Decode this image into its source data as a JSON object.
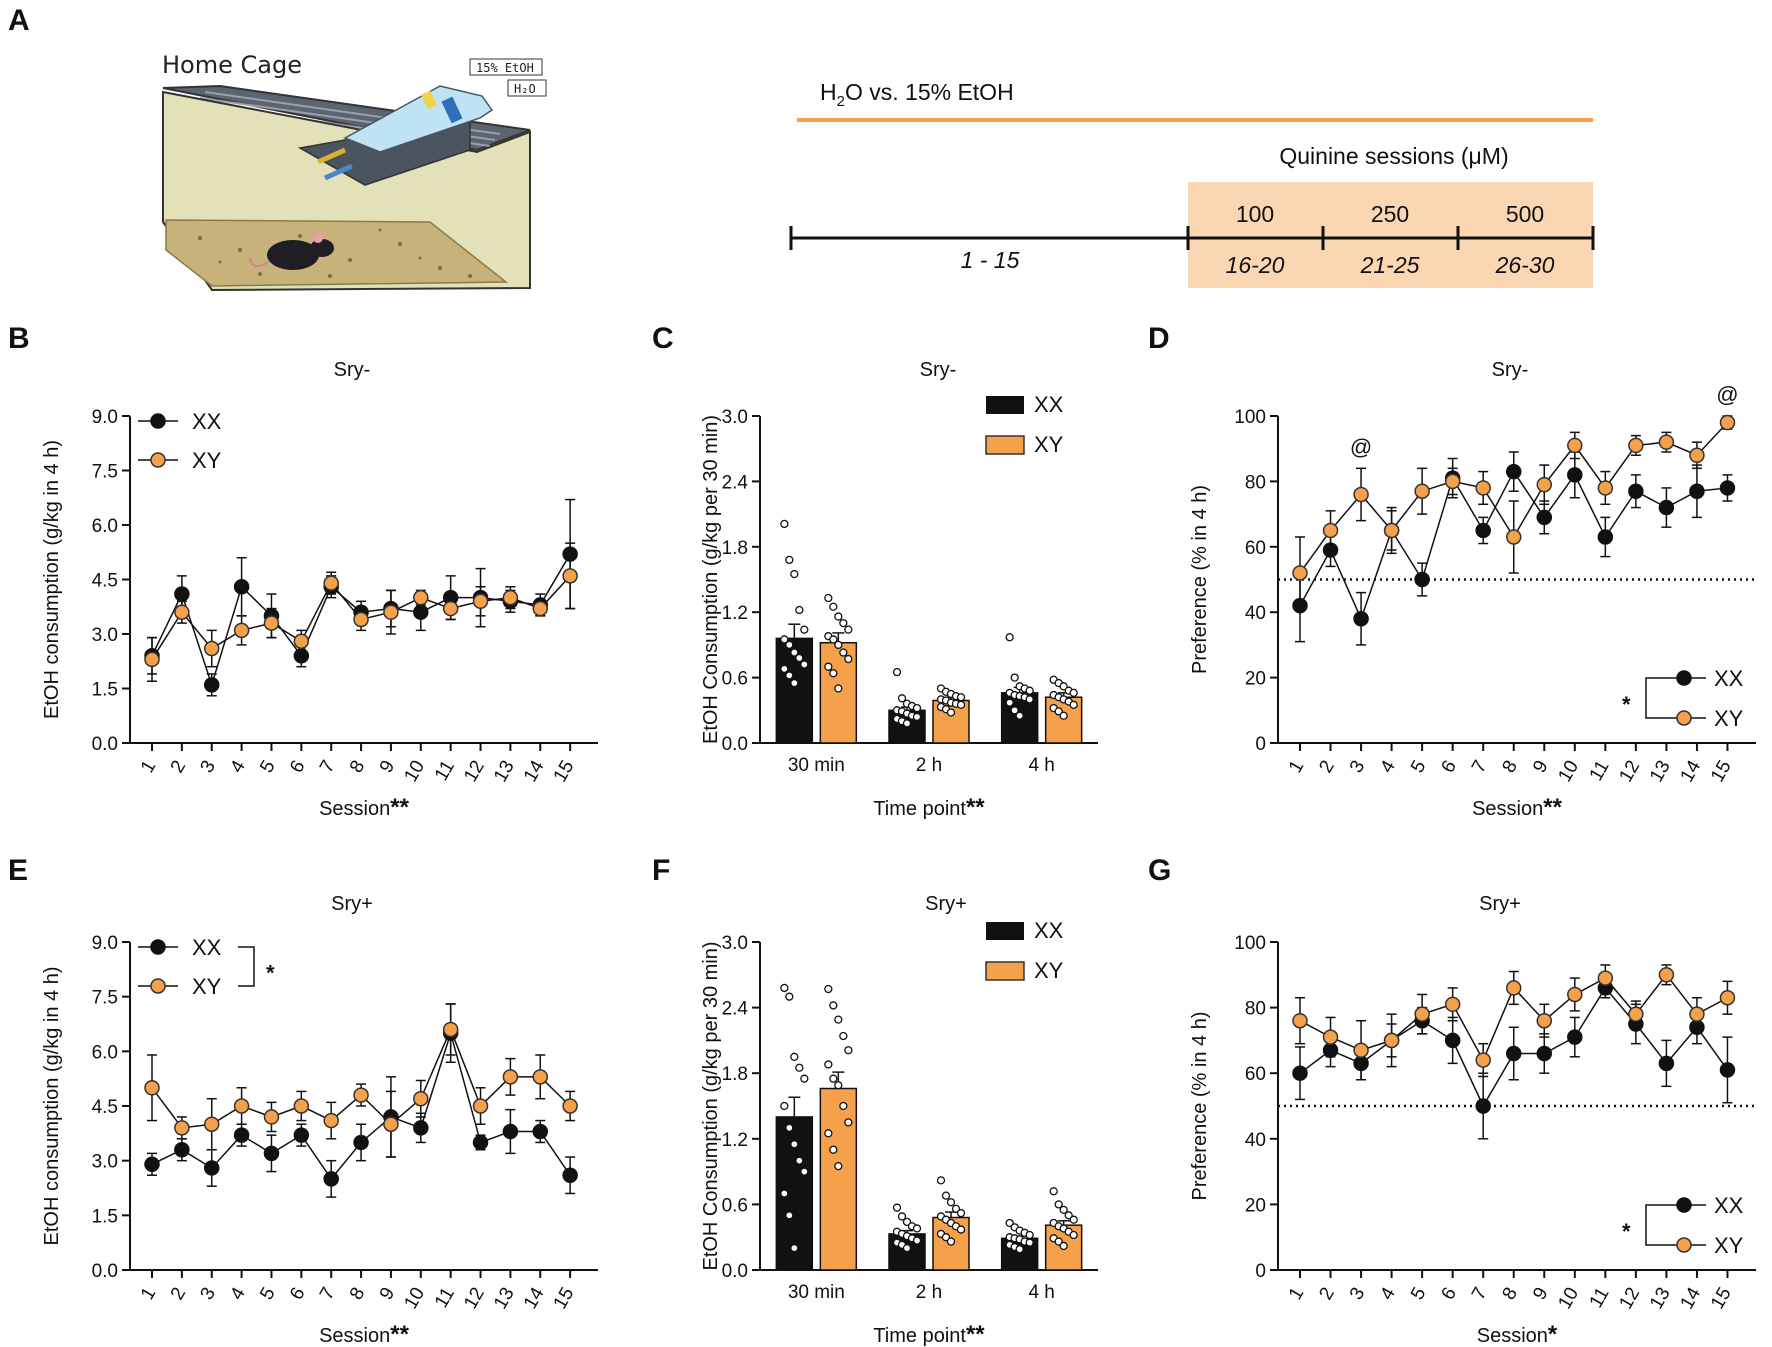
{
  "colors": {
    "xx": "#111111",
    "xy": "#f5a04a",
    "xy_stroke": "#333333",
    "timeline_line": "#f5a04a",
    "quinine_box": "#fbd6b3"
  },
  "panelA": {
    "label": "A",
    "cage": {
      "title": "Home Cage",
      "bottle1": "15% EtOH",
      "bottle2": "H₂O"
    },
    "timeline": {
      "h2o_label": "H",
      "h2o_sub": "2",
      "h2o_rest": "O vs. 15% EtOH",
      "quinine_title": "Quinine sessions (μM)",
      "concentrations": [
        "100",
        "250",
        "500"
      ],
      "ranges": [
        "1 - 15",
        "16-20",
        "21-25",
        "26-30"
      ]
    }
  },
  "legend": {
    "xx": "XX",
    "xy": "XY",
    "sig": "*"
  },
  "chart_data": [
    {
      "id": "B",
      "label": "B",
      "type": "line",
      "title": "Sry-",
      "xlabel": "Session",
      "xlabel_sig": "**",
      "ylabel": "EtOH consumption (g/kg in 4 h)",
      "ylim": [
        0,
        9
      ],
      "yticks": [
        "0.0",
        "1.5",
        "3.0",
        "4.5",
        "6.0",
        "7.5",
        "9.0"
      ],
      "x": [
        "1",
        "2",
        "3",
        "4",
        "5",
        "6",
        "7",
        "8",
        "9",
        "10",
        "11",
        "12",
        "13",
        "14",
        "15"
      ],
      "series": [
        {
          "name": "XX",
          "values": [
            2.4,
            4.1,
            1.6,
            4.3,
            3.5,
            2.4,
            4.3,
            3.6,
            3.7,
            3.6,
            4.0,
            4.0,
            3.9,
            3.8,
            5.2
          ],
          "errors": [
            0.5,
            0.5,
            0.3,
            0.8,
            0.6,
            0.3,
            0.3,
            0.3,
            0.5,
            0.5,
            0.6,
            0.8,
            0.3,
            0.3,
            1.5
          ]
        },
        {
          "name": "XY",
          "values": [
            2.3,
            3.6,
            2.6,
            3.1,
            3.3,
            2.8,
            4.4,
            3.4,
            3.6,
            4.0,
            3.7,
            3.9,
            4.0,
            3.7,
            4.6
          ],
          "errors": [
            0.6,
            0.3,
            0.5,
            0.4,
            0.4,
            0.3,
            0.3,
            0.3,
            0.6,
            0.2,
            0.3,
            0.4,
            0.3,
            0.2,
            0.9
          ]
        }
      ],
      "legend_sig": ""
    },
    {
      "id": "C",
      "label": "C",
      "type": "bar",
      "title": "Sry-",
      "xlabel": "Time point",
      "xlabel_sig": "**",
      "ylabel": "EtOH Consumption (g/kg per 30 min)",
      "ylim": [
        0,
        3
      ],
      "yticks": [
        "0.0",
        "0.6",
        "1.2",
        "1.8",
        "2.4",
        "3.0"
      ],
      "categories": [
        "30 min",
        "2 h",
        "4 h"
      ],
      "series": [
        {
          "name": "XX",
          "values": [
            0.96,
            0.3,
            0.46
          ],
          "errors": [
            0.13,
            0.03,
            0.05
          ],
          "points": [
            [
              2.01,
              1.68,
              1.55,
              1.22,
              1.04,
              0.95,
              0.9,
              0.83,
              0.78,
              0.72,
              0.68,
              0.62,
              0.55
            ],
            [
              0.65,
              0.41,
              0.36,
              0.34,
              0.32,
              0.3,
              0.29,
              0.27,
              0.25,
              0.24,
              0.22,
              0.2,
              0.18
            ],
            [
              0.97,
              0.6,
              0.52,
              0.5,
              0.48,
              0.46,
              0.44,
              0.43,
              0.42,
              0.4,
              0.37,
              0.3,
              0.25
            ]
          ]
        },
        {
          "name": "XY",
          "values": [
            0.92,
            0.39,
            0.42
          ],
          "errors": [
            0.09,
            0.03,
            0.04
          ],
          "points": [
            [
              1.33,
              1.25,
              1.16,
              1.1,
              1.04,
              0.98,
              0.95,
              0.9,
              0.83,
              0.77,
              0.7,
              0.64,
              0.5
            ],
            [
              0.5,
              0.47,
              0.45,
              0.43,
              0.42,
              0.4,
              0.39,
              0.37,
              0.36,
              0.35,
              0.33,
              0.31,
              0.28
            ],
            [
              0.58,
              0.55,
              0.52,
              0.48,
              0.46,
              0.44,
              0.42,
              0.4,
              0.38,
              0.35,
              0.32,
              0.29,
              0.25
            ]
          ]
        }
      ]
    },
    {
      "id": "D",
      "label": "D",
      "type": "line",
      "title": "Sry-",
      "xlabel": "Session",
      "xlabel_sig": "**",
      "ylabel": "Preference (% in 4 h)",
      "ylim": [
        0,
        100
      ],
      "yticks": [
        "0",
        "20",
        "40",
        "60",
        "80",
        "100"
      ],
      "reference_line": 50,
      "x": [
        "1",
        "2",
        "3",
        "4",
        "5",
        "6",
        "7",
        "8",
        "9",
        "10",
        "11",
        "12",
        "13",
        "14",
        "15"
      ],
      "series": [
        {
          "name": "XX",
          "values": [
            42,
            59,
            38,
            65,
            50,
            81,
            65,
            83,
            69,
            82,
            63,
            77,
            72,
            77,
            78
          ],
          "errors": [
            11,
            5,
            8,
            6,
            5,
            6,
            4,
            6,
            5,
            7,
            6,
            5,
            6,
            8,
            4
          ]
        },
        {
          "name": "XY",
          "values": [
            52,
            65,
            76,
            65,
            77,
            80,
            78,
            63,
            79,
            91,
            78,
            91,
            92,
            88,
            98
          ],
          "errors": [
            11,
            6,
            8,
            7,
            7,
            4,
            5,
            11,
            6,
            4,
            5,
            3,
            3,
            4,
            2
          ]
        }
      ],
      "annotations": [
        {
          "x": "3",
          "text": "@"
        },
        {
          "x": "15",
          "text": "@"
        }
      ],
      "legend_sig": "*"
    },
    {
      "id": "E",
      "label": "E",
      "type": "line",
      "title": "Sry+",
      "xlabel": "Session",
      "xlabel_sig": "**",
      "ylabel": "EtOH consumption (g/kg in 4 h)",
      "ylim": [
        0,
        9
      ],
      "yticks": [
        "0.0",
        "1.5",
        "3.0",
        "4.5",
        "6.0",
        "7.5",
        "9.0"
      ],
      "x": [
        "1",
        "2",
        "3",
        "4",
        "5",
        "6",
        "7",
        "8",
        "9",
        "10",
        "11",
        "12",
        "13",
        "14",
        "15"
      ],
      "series": [
        {
          "name": "XX",
          "values": [
            2.9,
            3.3,
            2.8,
            3.7,
            3.2,
            3.7,
            2.5,
            3.5,
            4.2,
            3.9,
            6.5,
            3.5,
            3.8,
            3.8,
            2.6
          ],
          "errors": [
            0.3,
            0.3,
            0.5,
            0.3,
            0.5,
            0.3,
            0.5,
            0.5,
            1.1,
            0.4,
            0.8,
            0.2,
            0.6,
            0.3,
            0.5
          ]
        },
        {
          "name": "XY",
          "values": [
            5.0,
            3.9,
            4.0,
            4.5,
            4.2,
            4.5,
            4.1,
            4.8,
            4.0,
            4.7,
            6.6,
            4.5,
            5.3,
            5.3,
            4.5
          ],
          "errors": [
            0.9,
            0.3,
            0.7,
            0.5,
            0.4,
            0.4,
            0.5,
            0.3,
            0.9,
            0.5,
            0.7,
            0.5,
            0.5,
            0.6,
            0.4
          ]
        }
      ],
      "legend_sig": "*"
    },
    {
      "id": "F",
      "label": "F",
      "type": "bar",
      "title": "Sry+",
      "xlabel": "Time point",
      "xlabel_sig": "**",
      "ylabel": "EtOH Consumption (g/kg per 30 min)",
      "ylim": [
        0,
        3
      ],
      "yticks": [
        "0.0",
        "0.6",
        "1.2",
        "1.8",
        "2.4",
        "3.0"
      ],
      "categories": [
        "30 min",
        "2 h",
        "4 h"
      ],
      "series": [
        {
          "name": "XX",
          "values": [
            1.4,
            0.33,
            0.29
          ],
          "errors": [
            0.18,
            0.03,
            0.02
          ],
          "points": [
            [
              2.58,
              2.5,
              1.95,
              1.85,
              1.75,
              1.5,
              1.3,
              1.15,
              1.0,
              0.9,
              0.7,
              0.5,
              0.2
            ],
            [
              0.57,
              0.49,
              0.44,
              0.4,
              0.38,
              0.35,
              0.33,
              0.31,
              0.29,
              0.27,
              0.25,
              0.23,
              0.2
            ],
            [
              0.43,
              0.39,
              0.36,
              0.34,
              0.32,
              0.3,
              0.29,
              0.28,
              0.26,
              0.25,
              0.23,
              0.21,
              0.19
            ]
          ]
        },
        {
          "name": "XY",
          "values": [
            1.66,
            0.48,
            0.41
          ],
          "errors": [
            0.15,
            0.05,
            0.04
          ],
          "points": [
            [
              2.57,
              2.42,
              2.29,
              2.14,
              2.01,
              1.88,
              1.75,
              1.69,
              1.5,
              1.35,
              1.25,
              1.1,
              0.95
            ],
            [
              0.82,
              0.68,
              0.62,
              0.56,
              0.52,
              0.49,
              0.46,
              0.43,
              0.4,
              0.37,
              0.33,
              0.3,
              0.26
            ],
            [
              0.72,
              0.6,
              0.55,
              0.5,
              0.46,
              0.43,
              0.4,
              0.38,
              0.35,
              0.32,
              0.29,
              0.26,
              0.22
            ]
          ]
        }
      ]
    },
    {
      "id": "G",
      "label": "G",
      "type": "line",
      "title": "Sry+",
      "xlabel": "Session",
      "xlabel_sig": "*",
      "ylabel": "Preference (% in 4 h)",
      "ylim": [
        0,
        100
      ],
      "yticks": [
        "0",
        "20",
        "40",
        "60",
        "80",
        "100"
      ],
      "reference_line": 50,
      "x": [
        "1",
        "2",
        "3",
        "4",
        "5",
        "6",
        "7",
        "8",
        "9",
        "10",
        "11",
        "12",
        "13",
        "14",
        "15"
      ],
      "series": [
        {
          "name": "XX",
          "values": [
            60,
            67,
            63,
            70,
            76,
            70,
            50,
            66,
            66,
            71,
            86,
            75,
            63,
            74,
            61
          ],
          "errors": [
            8,
            5,
            5,
            5,
            4,
            7,
            10,
            8,
            6,
            6,
            3,
            6,
            7,
            5,
            10
          ]
        },
        {
          "name": "XY",
          "values": [
            76,
            71,
            67,
            70,
            78,
            81,
            64,
            86,
            76,
            84,
            89,
            78,
            90,
            78,
            83
          ],
          "errors": [
            7,
            6,
            9,
            8,
            6,
            5,
            5,
            5,
            5,
            5,
            4,
            4,
            3,
            5,
            5
          ]
        }
      ],
      "legend_sig": "*"
    }
  ]
}
